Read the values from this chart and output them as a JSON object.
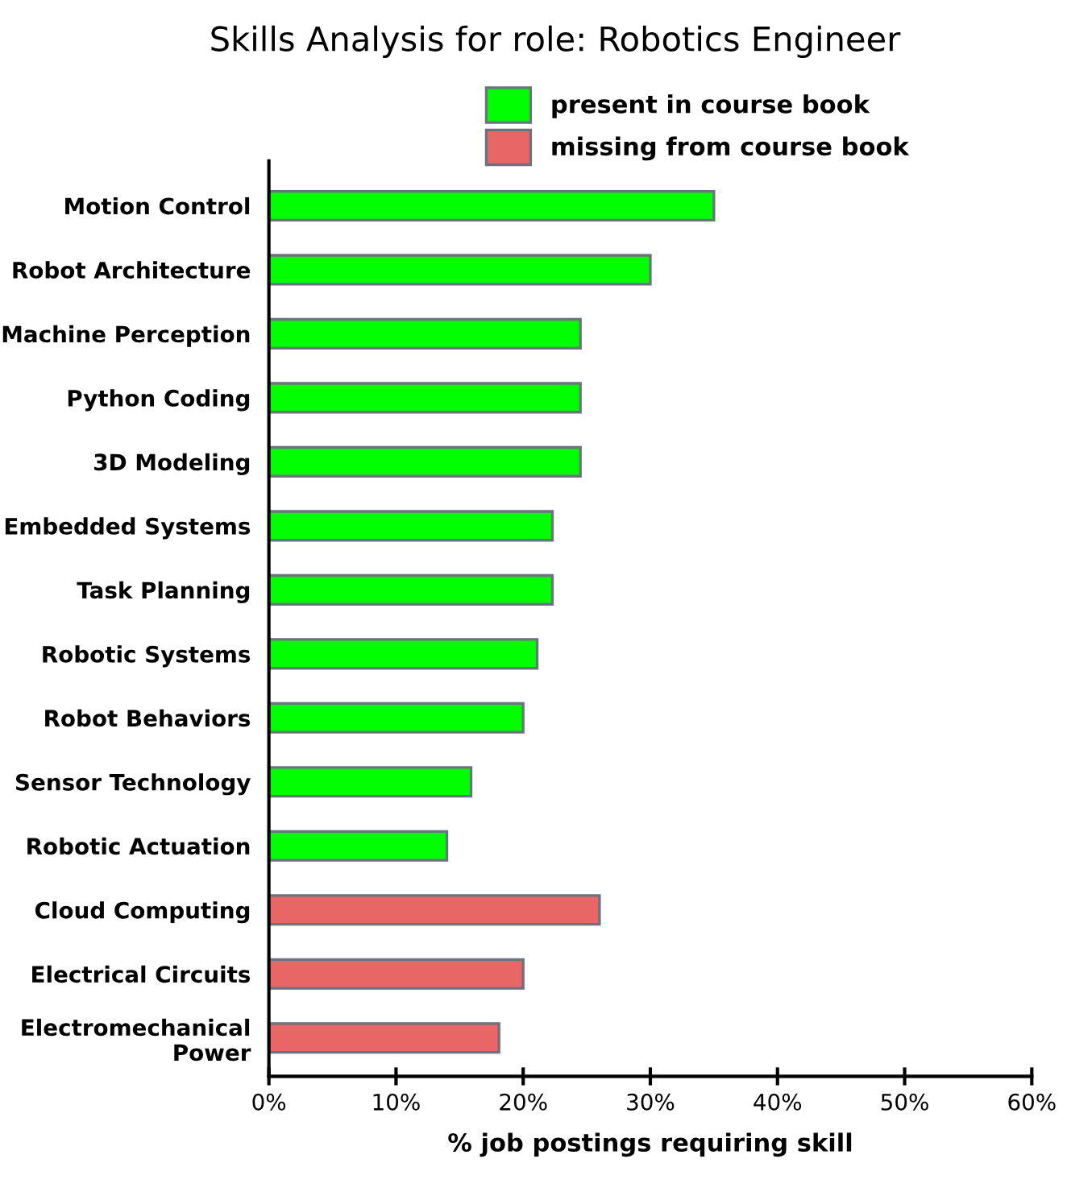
{
  "chart_data": {
    "type": "bar",
    "orientation": "horizontal",
    "title": "Skills Analysis for role: Robotics Engineer",
    "xlabel": "% job postings requiring skill",
    "categories": [
      "Motion Control",
      "Robot Architecture",
      "Machine Perception",
      "Python Coding",
      "3D Modeling",
      "Embedded Systems",
      "Task Planning",
      "Robotic Systems",
      "Robot Behaviors",
      "Sensor Technology",
      "Robotic Actuation",
      "Cloud Computing",
      "Electrical Circuits",
      "Electromechanical\nPower"
    ],
    "series": [
      {
        "name": "present in course book",
        "color": "#00ff00",
        "values": [
          35,
          30,
          24.5,
          24.5,
          24.5,
          22.3,
          22.3,
          21.1,
          20,
          15.9,
          14,
          null,
          null,
          null
        ]
      },
      {
        "name": "missing from course book",
        "color": "#e86666",
        "values": [
          null,
          null,
          null,
          null,
          null,
          null,
          null,
          null,
          null,
          null,
          null,
          26,
          20,
          18.1
        ]
      }
    ],
    "xlim": [
      0,
      60
    ],
    "xticks": [
      {
        "value": 0,
        "label": "0%"
      },
      {
        "value": 10,
        "label": "10%"
      },
      {
        "value": 20,
        "label": "20%"
      },
      {
        "value": 30,
        "label": "30%"
      },
      {
        "value": 40,
        "label": "40%"
      },
      {
        "value": 50,
        "label": "50%"
      },
      {
        "value": 60,
        "label": "60%"
      }
    ],
    "grid": false,
    "legend": "top"
  }
}
